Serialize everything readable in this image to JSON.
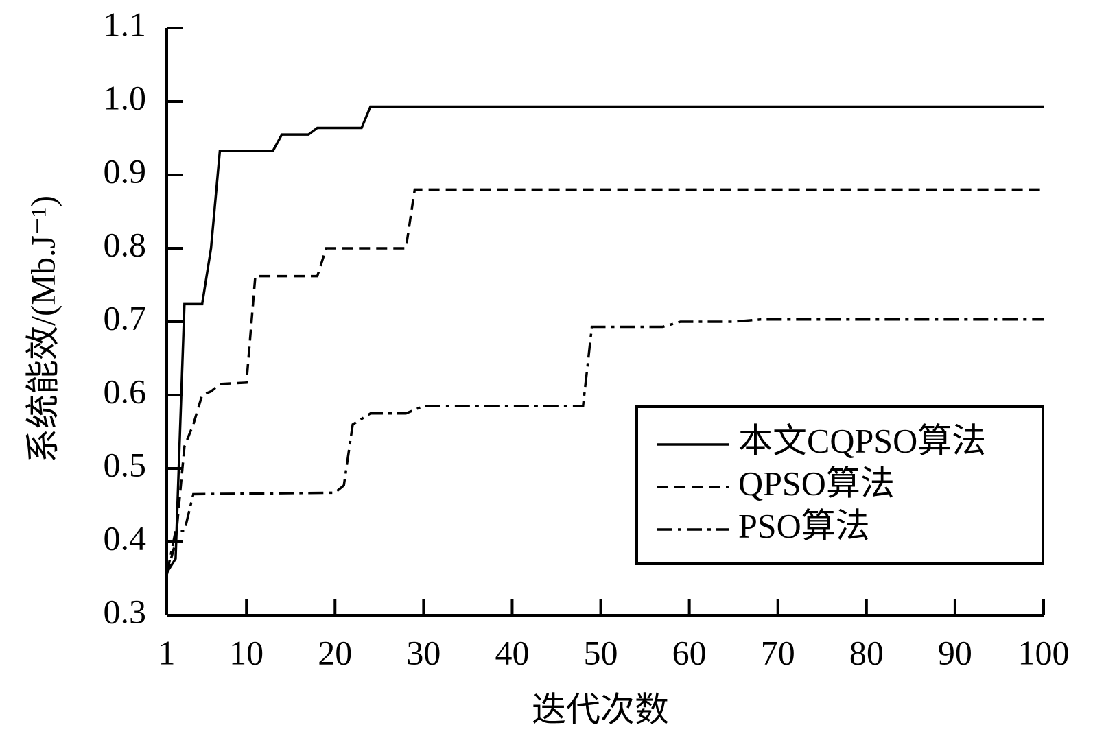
{
  "chart_data": {
    "type": "line",
    "x_label": "迭代次数",
    "y_label": "系统能效/(Mb.J⁻¹)",
    "xlim": [
      1,
      100
    ],
    "xticks": [
      1,
      10,
      20,
      30,
      40,
      50,
      60,
      70,
      80,
      90,
      100
    ],
    "ylim": [
      0.3,
      1.1
    ],
    "yticks": [
      0.3,
      0.4,
      0.5,
      0.6,
      0.7,
      0.8,
      0.9,
      {
        "value": 1,
        "label": "1.0"
      },
      1.1
    ],
    "legend": "lower right",
    "series": [
      {
        "name": "本文CQPSO算法",
        "color": "#000000",
        "dash": "solid",
        "x": [
          1,
          2,
          3,
          5,
          6,
          7,
          13,
          14,
          17,
          18,
          23,
          24,
          100
        ],
        "values": [
          0.358,
          0.377,
          0.724,
          0.724,
          0.8,
          0.933,
          0.933,
          0.955,
          0.955,
          0.964,
          0.964,
          0.993,
          0.993
        ]
      },
      {
        "name": "QPSO算法",
        "color": "#000000",
        "dash": "dashed",
        "x": [
          1,
          2,
          3,
          4,
          5,
          6,
          7,
          10,
          11,
          18,
          19,
          28,
          29,
          100
        ],
        "values": [
          0.355,
          0.4,
          0.53,
          0.56,
          0.6,
          0.605,
          0.615,
          0.617,
          0.762,
          0.762,
          0.8,
          0.8,
          0.88,
          0.88
        ]
      },
      {
        "name": "PSO算法",
        "color": "#000000",
        "dash": "dashdot",
        "x": [
          1,
          2,
          3,
          4,
          20,
          21,
          22,
          24,
          28,
          30,
          48,
          49,
          57,
          59,
          65,
          68,
          100
        ],
        "values": [
          0.355,
          0.415,
          0.415,
          0.465,
          0.467,
          0.477,
          0.56,
          0.575,
          0.575,
          0.585,
          0.585,
          0.693,
          0.693,
          0.7,
          0.7,
          0.703,
          0.703
        ]
      }
    ]
  }
}
